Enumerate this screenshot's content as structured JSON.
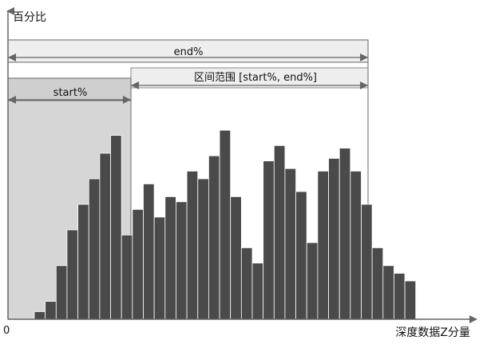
{
  "axes": {
    "y_label": "百分比",
    "x_label": "深度数据Z分量",
    "origin_label": "0"
  },
  "ranges": {
    "end_label": "end%",
    "start_label": "start%",
    "interval_label": "区间范围 [start%, end%]"
  },
  "colors": {
    "bar_fill": "#4a4a4a",
    "bar_stroke": "#ffffff",
    "start_region_fill": "#d6d6d6",
    "band_fill": "#eeeeee",
    "line": "#666666"
  },
  "chart_data": {
    "type": "bar",
    "values": [
      3,
      7,
      21,
      35,
      45,
      55,
      65,
      72,
      33,
      43,
      53,
      40,
      48,
      46,
      58,
      55,
      64,
      74,
      48,
      28,
      22,
      62,
      68,
      59,
      50,
      30,
      58,
      63,
      67,
      58,
      45,
      28,
      21,
      18,
      15
    ],
    "start_bin": 11,
    "end_bin": 32
  }
}
